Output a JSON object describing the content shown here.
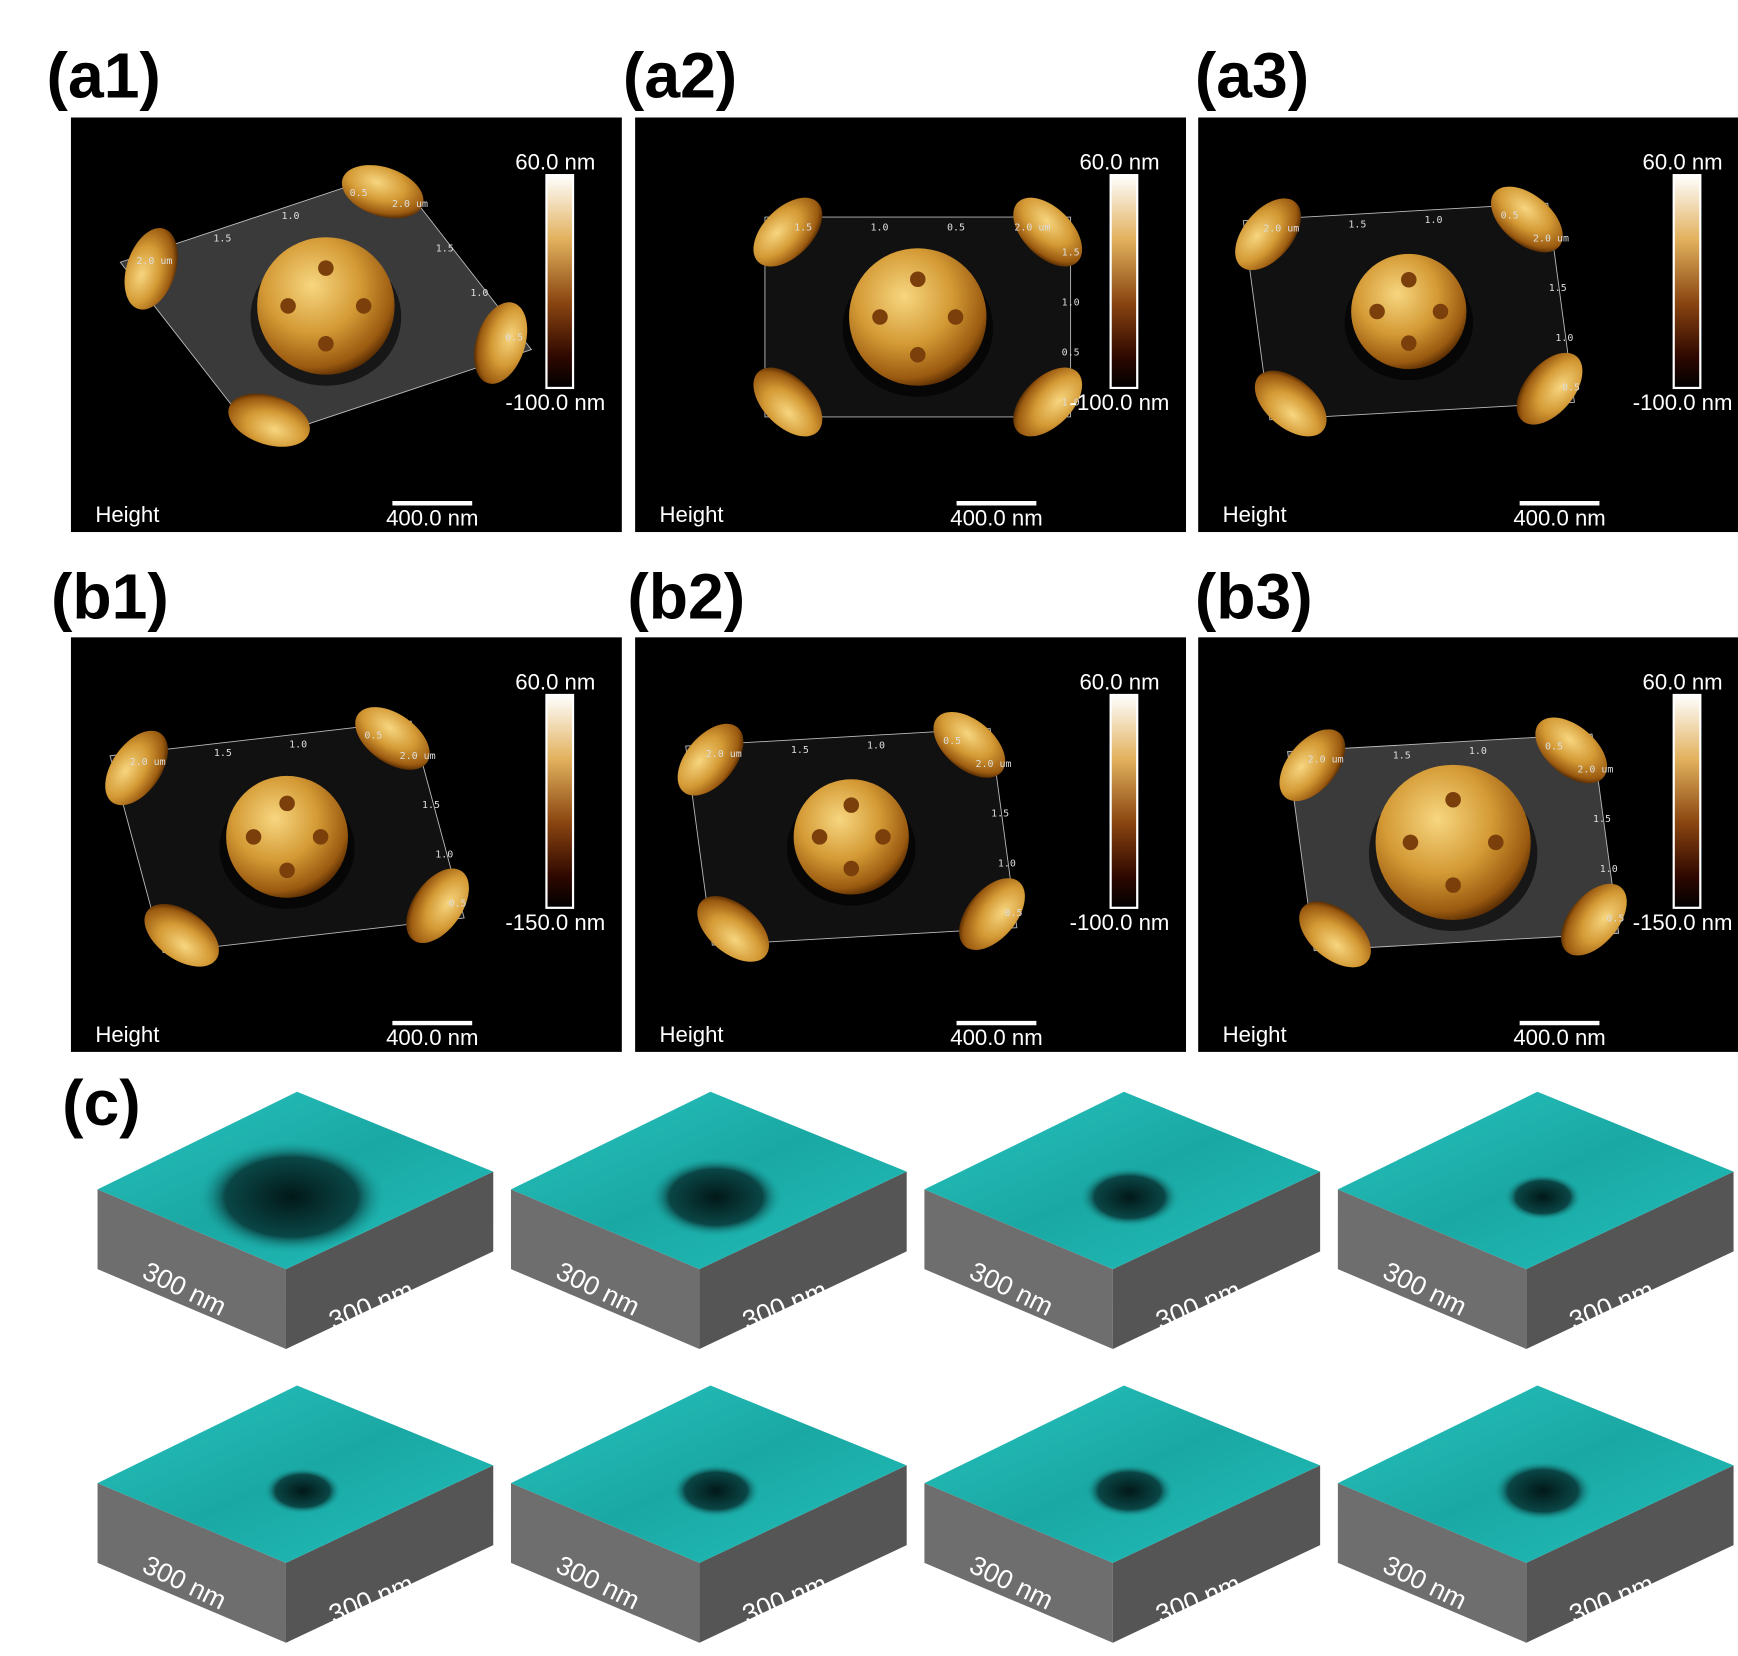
{
  "panels": [
    {
      "label": "(a1)",
      "caption": "Height",
      "scale_bar": "400.0 nm",
      "colorbar_max": "60.0 nm",
      "colorbar_min": "-100.0 nm",
      "axis_ticks": [
        "2.0 um",
        "1.5",
        "1.0",
        "0.5",
        "2.0 um",
        "1.5",
        "1.0",
        "0.5"
      ]
    },
    {
      "label": "(a2)",
      "caption": "Height",
      "scale_bar": "400.0 nm",
      "colorbar_max": "60.0 nm",
      "colorbar_min": "-100.0 nm",
      "axis_ticks": [
        "1.5",
        "1.0",
        "0.5",
        "2.0 um",
        "1.5",
        "1.0",
        "0.5",
        "1.0"
      ]
    },
    {
      "label": "(a3)",
      "caption": "Height",
      "scale_bar": "400.0 nm",
      "colorbar_max": "60.0 nm",
      "colorbar_min": "-100.0 nm",
      "axis_ticks": [
        "2.0 um",
        "1.5",
        "1.0",
        "0.5",
        "2.0 um",
        "1.5",
        "1.0",
        "0.5"
      ]
    },
    {
      "label": "(b1)",
      "caption": "Height",
      "scale_bar": "400.0 nm",
      "colorbar_max": "60.0 nm",
      "colorbar_min": "-150.0 nm",
      "axis_ticks": [
        "2.0 um",
        "1.5",
        "1.0",
        "0.5",
        "2.0 um",
        "1.5",
        "1.0",
        "0.5"
      ]
    },
    {
      "label": "(b2)",
      "caption": "Height",
      "scale_bar": "400.0 nm",
      "colorbar_max": "60.0 nm",
      "colorbar_min": "-100.0 nm",
      "axis_ticks": [
        "2.0 um",
        "1.5",
        "1.0",
        "0.5",
        "2.0 um",
        "1.5",
        "1.0",
        "0.5"
      ]
    },
    {
      "label": "(b3)",
      "caption": "Height",
      "scale_bar": "400.0 nm",
      "colorbar_max": "60.0 nm",
      "colorbar_min": "-150.0 nm",
      "axis_ticks": [
        "2.0 um",
        "1.5",
        "1.0",
        "0.5",
        "2.0 um",
        "1.5",
        "1.0",
        "0.5"
      ]
    }
  ],
  "section_c": {
    "label": "(c)",
    "blocks": [
      {
        "left_size": "300 nm",
        "right_size": "300 nm"
      },
      {
        "left_size": "300 nm",
        "right_size": "300 nm"
      },
      {
        "left_size": "300 nm",
        "right_size": "300 nm"
      },
      {
        "left_size": "300 nm",
        "right_size": "300 nm"
      },
      {
        "left_size": "300 nm",
        "right_size": "300 nm"
      },
      {
        "left_size": "300 nm",
        "right_size": "300 nm"
      },
      {
        "left_size": "300 nm",
        "right_size": "300 nm"
      },
      {
        "left_size": "300 nm",
        "right_size": "300 nm"
      }
    ]
  }
}
